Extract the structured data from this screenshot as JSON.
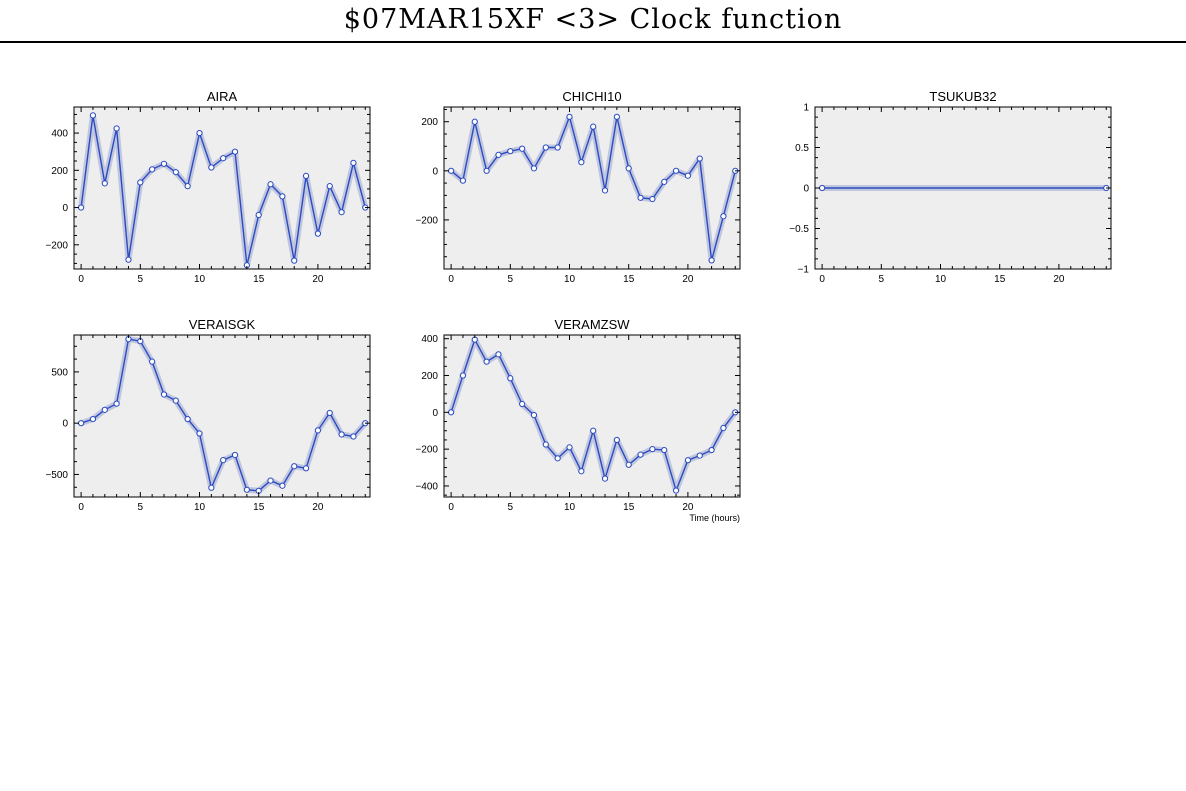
{
  "title": "$07MAR15XF <3>  Clock function",
  "colors": {
    "line": "#2b4bc0",
    "band": "#b9bedc",
    "panel_bg": "#eeeeee",
    "marker_fill": "#ffffff"
  },
  "chart_data": [
    {
      "type": "line",
      "title": "AIRA",
      "xlabel": "",
      "ylabel": "",
      "xlim": [
        -0.6,
        24.4
      ],
      "ylim": [
        -330,
        540
      ],
      "xticks": [
        0,
        5,
        10,
        15,
        20
      ],
      "yticks": [
        -200,
        0,
        200,
        400
      ],
      "ytick_labels": [
        "−200",
        "0",
        "200",
        "400"
      ],
      "series": [
        {
          "x": [
            0,
            1,
            2,
            3,
            4,
            5,
            6,
            7,
            8,
            9,
            10,
            11,
            12,
            13,
            14,
            15,
            16,
            17,
            18,
            19,
            20,
            21,
            22,
            23,
            24
          ],
          "values": [
            0,
            495,
            130,
            425,
            -280,
            135,
            205,
            235,
            190,
            115,
            400,
            215,
            265,
            300,
            -310,
            -40,
            125,
            60,
            -285,
            170,
            -140,
            115,
            -25,
            240,
            0
          ]
        }
      ]
    },
    {
      "type": "line",
      "title": "CHICHI10",
      "xlabel": "",
      "ylabel": "",
      "xlim": [
        -0.6,
        24.4
      ],
      "ylim": [
        -400,
        260
      ],
      "xticks": [
        0,
        5,
        10,
        15,
        20
      ],
      "yticks": [
        -200,
        0,
        200
      ],
      "ytick_labels": [
        "−200",
        "0",
        "200"
      ],
      "series": [
        {
          "x": [
            0,
            1,
            2,
            3,
            4,
            5,
            6,
            7,
            8,
            9,
            10,
            11,
            12,
            13,
            14,
            15,
            16,
            17,
            18,
            19,
            20,
            21,
            22,
            23,
            24
          ],
          "values": [
            0,
            -40,
            200,
            0,
            65,
            80,
            90,
            10,
            95,
            95,
            220,
            35,
            180,
            -80,
            220,
            10,
            -110,
            -115,
            -45,
            0,
            -20,
            50,
            -365,
            -185,
            0
          ]
        }
      ]
    },
    {
      "type": "line",
      "title": "TSUKUB32",
      "xlabel": "",
      "ylabel": "",
      "xlim": [
        -0.6,
        24.4
      ],
      "ylim": [
        -1,
        1
      ],
      "xticks": [
        0,
        5,
        10,
        15,
        20
      ],
      "yticks": [
        -1,
        -0.5,
        0,
        0.5,
        1
      ],
      "ytick_labels": [
        "−1",
        "−0.5",
        "0",
        "0.5",
        "1"
      ],
      "series": [
        {
          "x": [
            0,
            24
          ],
          "values": [
            0,
            0
          ]
        }
      ]
    },
    {
      "type": "line",
      "title": "VERAISGK",
      "xlabel": "",
      "ylabel": "",
      "xlim": [
        -0.6,
        24.4
      ],
      "ylim": [
        -720,
        860
      ],
      "xticks": [
        0,
        5,
        10,
        15,
        20
      ],
      "yticks": [
        -500,
        0,
        500
      ],
      "ytick_labels": [
        "−500",
        "0",
        "500"
      ],
      "series": [
        {
          "x": [
            0,
            1,
            2,
            3,
            4,
            5,
            6,
            7,
            8,
            9,
            10,
            11,
            12,
            13,
            14,
            15,
            16,
            17,
            18,
            19,
            20,
            21,
            22,
            23,
            24
          ],
          "values": [
            0,
            40,
            130,
            190,
            820,
            800,
            600,
            280,
            220,
            40,
            -100,
            -630,
            -360,
            -310,
            -650,
            -660,
            -560,
            -610,
            -420,
            -440,
            -70,
            100,
            -110,
            -130,
            0
          ]
        }
      ]
    },
    {
      "type": "line",
      "title": "VERAMZSW",
      "xlabel": "Time (hours)",
      "ylabel": "",
      "xlim": [
        -0.6,
        24.4
      ],
      "ylim": [
        -460,
        420
      ],
      "xticks": [
        0,
        5,
        10,
        15,
        20
      ],
      "yticks": [
        -400,
        -200,
        0,
        200,
        400
      ],
      "ytick_labels": [
        "−400",
        "−200",
        "0",
        "200",
        "400"
      ],
      "series": [
        {
          "x": [
            0,
            1,
            2,
            3,
            4,
            5,
            6,
            7,
            8,
            9,
            10,
            11,
            12,
            13,
            14,
            15,
            16,
            17,
            18,
            19,
            20,
            21,
            22,
            23,
            24
          ],
          "values": [
            0,
            200,
            395,
            275,
            315,
            185,
            45,
            -15,
            -175,
            -250,
            -190,
            -320,
            -100,
            -360,
            -150,
            -285,
            -230,
            -200,
            -205,
            -425,
            -260,
            -235,
            -205,
            -85,
            0
          ]
        }
      ]
    }
  ]
}
